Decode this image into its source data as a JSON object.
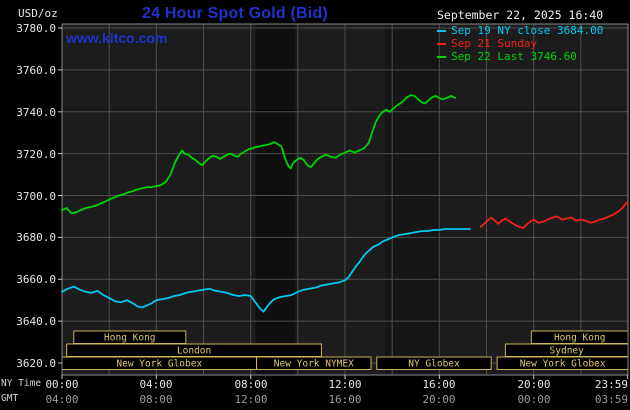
{
  "header": {
    "units_label": "USD/oz",
    "title": "24 Hour Spot Gold (Bid)",
    "timestamp": "September 22, 2025 16:40",
    "watermark": "www.kitco.com"
  },
  "colors": {
    "kitco_blue": "#2233cc",
    "background": "#000000",
    "plot_background": "#1c1c1c",
    "grid": "#4e4e4e",
    "axis_text": "#e6e6e6",
    "gmt_text": "#9c9c9c",
    "session_box": "#cdb55e",
    "series_sep19": "#00c8f0",
    "series_sep21": "#f22018",
    "series_sep22": "#00d400"
  },
  "legend": {
    "items": [
      {
        "label": "Sep 19 NY close 3684.00",
        "color": "#00c8f0"
      },
      {
        "label": "Sep 21 Sunday",
        "color": "#f22018"
      },
      {
        "label": "Sep 22 Last 3746.60",
        "color": "#00d400"
      }
    ]
  },
  "axes": {
    "ny_time_label": "NY Time",
    "gmt_label": "GMT",
    "y_ticks": [
      "3780.0",
      "3760.0",
      "3740.0",
      "3720.0",
      "3700.0",
      "3680.0",
      "3660.0",
      "3640.0",
      "3620.0"
    ],
    "ny_ticks": [
      "00:00",
      "04:00",
      "08:00",
      "12:00",
      "16:00",
      "20:00",
      "23:59"
    ],
    "gmt_ticks": [
      "04:00",
      "08:00",
      "12:00",
      "16:00",
      "20:00",
      "00:00",
      "03:59"
    ]
  },
  "chart_data": {
    "type": "line",
    "title": "24 Hour Spot Gold (Bid)",
    "y_axis": {
      "units": "USD/oz",
      "range": [
        3620,
        3780
      ],
      "tick_step": 20
    },
    "x_axis": {
      "range_hours": [
        0,
        24
      ],
      "tick_step_hours": 4,
      "timezone_rows": [
        "NY Time",
        "GMT"
      ]
    },
    "grid": true,
    "legend_position": "top-right",
    "shaded_bands": [
      {
        "start_hour": 8.2,
        "end_hour": 9.9,
        "opacity": 0.45
      },
      {
        "start_hour": 13.7,
        "end_hour": 16.05,
        "opacity": 0.18
      }
    ],
    "sessions": [
      {
        "label": "Hong Kong",
        "row": 0,
        "start_hour": 0.5,
        "end_hour": 5.25
      },
      {
        "label": "Hong Kong",
        "row": 0,
        "start_hour": 19.9,
        "end_hour": 24
      },
      {
        "label": "London",
        "row": 1,
        "start_hour": 0.2,
        "end_hour": 11.0
      },
      {
        "label": "Sydney",
        "row": 1,
        "start_hour": 18.8,
        "end_hour": 24
      },
      {
        "label": "New York Globex",
        "row": 2,
        "start_hour": 0,
        "end_hour": 8.25
      },
      {
        "label": "New York NYMEX",
        "row": 2,
        "start_hour": 8.25,
        "end_hour": 13.1
      },
      {
        "label": "NY Globex",
        "row": 2,
        "start_hour": 13.35,
        "end_hour": 18.2
      },
      {
        "label": "New York Globex",
        "row": 2,
        "start_hour": 18.45,
        "end_hour": 24
      }
    ],
    "series": [
      {
        "name": "Sep 19 NY close",
        "color": "#00c8f0",
        "close_value": 3684.0,
        "points": [
          [
            0,
            3654
          ],
          [
            0.25,
            3655.5
          ],
          [
            0.5,
            3656.5
          ],
          [
            0.75,
            3655
          ],
          [
            1,
            3654
          ],
          [
            1.25,
            3653.5
          ],
          [
            1.5,
            3654.5
          ],
          [
            1.75,
            3652.5
          ],
          [
            2,
            3651
          ],
          [
            2.25,
            3649.5
          ],
          [
            2.5,
            3649
          ],
          [
            2.75,
            3650
          ],
          [
            3,
            3648.5
          ],
          [
            3.2,
            3647
          ],
          [
            3.4,
            3646.5
          ],
          [
            3.6,
            3647.5
          ],
          [
            3.8,
            3648.5
          ],
          [
            4,
            3650
          ],
          [
            4.25,
            3650.5
          ],
          [
            4.5,
            3651
          ],
          [
            4.75,
            3652
          ],
          [
            5,
            3652.5
          ],
          [
            5.25,
            3653.5
          ],
          [
            5.5,
            3654
          ],
          [
            5.75,
            3654.5
          ],
          [
            6,
            3655
          ],
          [
            6.25,
            3655.5
          ],
          [
            6.5,
            3654.5
          ],
          [
            6.75,
            3654
          ],
          [
            7,
            3653.5
          ],
          [
            7.25,
            3652.5
          ],
          [
            7.5,
            3652
          ],
          [
            7.75,
            3652.5
          ],
          [
            8,
            3652
          ],
          [
            8.2,
            3649
          ],
          [
            8.4,
            3646
          ],
          [
            8.55,
            3644.5
          ],
          [
            8.7,
            3647
          ],
          [
            8.85,
            3649
          ],
          [
            9,
            3650.5
          ],
          [
            9.25,
            3651.5
          ],
          [
            9.5,
            3652
          ],
          [
            9.75,
            3652.5
          ],
          [
            10,
            3654
          ],
          [
            10.25,
            3655
          ],
          [
            10.5,
            3655.5
          ],
          [
            10.75,
            3656
          ],
          [
            11,
            3657
          ],
          [
            11.25,
            3657.5
          ],
          [
            11.5,
            3658
          ],
          [
            11.75,
            3658.5
          ],
          [
            12,
            3659.5
          ],
          [
            12.15,
            3661
          ],
          [
            12.3,
            3663.5
          ],
          [
            12.45,
            3666
          ],
          [
            12.6,
            3668
          ],
          [
            12.75,
            3670.5
          ],
          [
            12.9,
            3672.5
          ],
          [
            13.05,
            3674
          ],
          [
            13.2,
            3675.5
          ],
          [
            13.4,
            3676.5
          ],
          [
            13.6,
            3678
          ],
          [
            13.8,
            3679
          ],
          [
            14,
            3680
          ],
          [
            14.25,
            3681
          ],
          [
            14.5,
            3681.5
          ],
          [
            14.75,
            3682
          ],
          [
            15,
            3682.5
          ],
          [
            15.25,
            3683
          ],
          [
            15.5,
            3683
          ],
          [
            15.75,
            3683.5
          ],
          [
            16,
            3683.5
          ],
          [
            16.25,
            3684
          ],
          [
            16.5,
            3684
          ],
          [
            17,
            3684
          ],
          [
            17.3,
            3684
          ]
        ]
      },
      {
        "name": "Sep 21 Sunday",
        "color": "#f22018",
        "points": [
          [
            17.75,
            3685
          ],
          [
            17.9,
            3686.5
          ],
          [
            18.05,
            3688
          ],
          [
            18.2,
            3689.5
          ],
          [
            18.35,
            3688
          ],
          [
            18.5,
            3686.5
          ],
          [
            18.65,
            3688
          ],
          [
            18.8,
            3689
          ],
          [
            19,
            3687.5
          ],
          [
            19.2,
            3686
          ],
          [
            19.4,
            3685
          ],
          [
            19.55,
            3684.5
          ],
          [
            19.7,
            3686
          ],
          [
            19.85,
            3687.5
          ],
          [
            20,
            3688.5
          ],
          [
            20.2,
            3687
          ],
          [
            20.4,
            3687.5
          ],
          [
            20.6,
            3688.5
          ],
          [
            20.8,
            3689.5
          ],
          [
            21,
            3690
          ],
          [
            21.2,
            3688.5
          ],
          [
            21.4,
            3689
          ],
          [
            21.6,
            3689.5
          ],
          [
            21.8,
            3688
          ],
          [
            22,
            3688.5
          ],
          [
            22.2,
            3688
          ],
          [
            22.4,
            3687
          ],
          [
            22.6,
            3687.5
          ],
          [
            22.8,
            3688.5
          ],
          [
            23,
            3689
          ],
          [
            23.2,
            3690
          ],
          [
            23.4,
            3691
          ],
          [
            23.6,
            3692.5
          ],
          [
            23.75,
            3694
          ],
          [
            23.9,
            3696
          ],
          [
            24,
            3697
          ]
        ]
      },
      {
        "name": "Sep 22 Last",
        "color": "#00d400",
        "last_value": 3746.6,
        "points": [
          [
            0,
            3693
          ],
          [
            0.2,
            3694
          ],
          [
            0.4,
            3691.5
          ],
          [
            0.6,
            3692
          ],
          [
            0.8,
            3693
          ],
          [
            1,
            3694
          ],
          [
            1.2,
            3694.5
          ],
          [
            1.4,
            3695
          ],
          [
            1.6,
            3696
          ],
          [
            1.8,
            3697
          ],
          [
            2,
            3698
          ],
          [
            2.2,
            3699
          ],
          [
            2.4,
            3700
          ],
          [
            2.6,
            3700.5
          ],
          [
            2.8,
            3701.5
          ],
          [
            3,
            3702
          ],
          [
            3.2,
            3703
          ],
          [
            3.4,
            3703.5
          ],
          [
            3.6,
            3704
          ],
          [
            3.8,
            3704
          ],
          [
            4,
            3704.5
          ],
          [
            4.2,
            3705
          ],
          [
            4.4,
            3706.5
          ],
          [
            4.6,
            3710
          ],
          [
            4.8,
            3716
          ],
          [
            5,
            3720
          ],
          [
            5.1,
            3721.5
          ],
          [
            5.2,
            3720
          ],
          [
            5.35,
            3719.5
          ],
          [
            5.5,
            3718
          ],
          [
            5.65,
            3717
          ],
          [
            5.8,
            3715.5
          ],
          [
            5.95,
            3714.5
          ],
          [
            6.1,
            3716.5
          ],
          [
            6.25,
            3718
          ],
          [
            6.4,
            3719
          ],
          [
            6.55,
            3718.5
          ],
          [
            6.7,
            3717.5
          ],
          [
            6.85,
            3718.5
          ],
          [
            7,
            3719.5
          ],
          [
            7.15,
            3720
          ],
          [
            7.3,
            3719
          ],
          [
            7.45,
            3718.5
          ],
          [
            7.6,
            3720
          ],
          [
            7.75,
            3721
          ],
          [
            7.9,
            3722
          ],
          [
            8.05,
            3722.5
          ],
          [
            8.2,
            3723
          ],
          [
            8.4,
            3723.5
          ],
          [
            8.6,
            3724
          ],
          [
            8.8,
            3724.5
          ],
          [
            9,
            3725.5
          ],
          [
            9.15,
            3724.5
          ],
          [
            9.3,
            3723.5
          ],
          [
            9.45,
            3718
          ],
          [
            9.6,
            3714
          ],
          [
            9.7,
            3713
          ],
          [
            9.8,
            3715.5
          ],
          [
            9.95,
            3717
          ],
          [
            10.1,
            3718
          ],
          [
            10.25,
            3717
          ],
          [
            10.4,
            3714.5
          ],
          [
            10.55,
            3713.5
          ],
          [
            10.7,
            3715.5
          ],
          [
            10.85,
            3717.5
          ],
          [
            11,
            3718.5
          ],
          [
            11.2,
            3719.5
          ],
          [
            11.4,
            3718.5
          ],
          [
            11.6,
            3718
          ],
          [
            11.8,
            3719.5
          ],
          [
            12,
            3720.5
          ],
          [
            12.2,
            3721.5
          ],
          [
            12.4,
            3720.5
          ],
          [
            12.6,
            3721.5
          ],
          [
            12.8,
            3722.5
          ],
          [
            13,
            3725
          ],
          [
            13.15,
            3730
          ],
          [
            13.3,
            3735
          ],
          [
            13.45,
            3738
          ],
          [
            13.6,
            3740
          ],
          [
            13.75,
            3741
          ],
          [
            13.9,
            3740
          ],
          [
            14.05,
            3741.5
          ],
          [
            14.2,
            3743
          ],
          [
            14.35,
            3744
          ],
          [
            14.5,
            3745.5
          ],
          [
            14.65,
            3747
          ],
          [
            14.8,
            3748
          ],
          [
            14.95,
            3747.5
          ],
          [
            15.1,
            3746
          ],
          [
            15.25,
            3744.5
          ],
          [
            15.4,
            3744
          ],
          [
            15.55,
            3745.5
          ],
          [
            15.7,
            3747
          ],
          [
            15.85,
            3747.5
          ],
          [
            16,
            3746.5
          ],
          [
            16.15,
            3746
          ],
          [
            16.3,
            3746.5
          ],
          [
            16.5,
            3747.5
          ],
          [
            16.67,
            3746.6
          ]
        ]
      }
    ]
  }
}
